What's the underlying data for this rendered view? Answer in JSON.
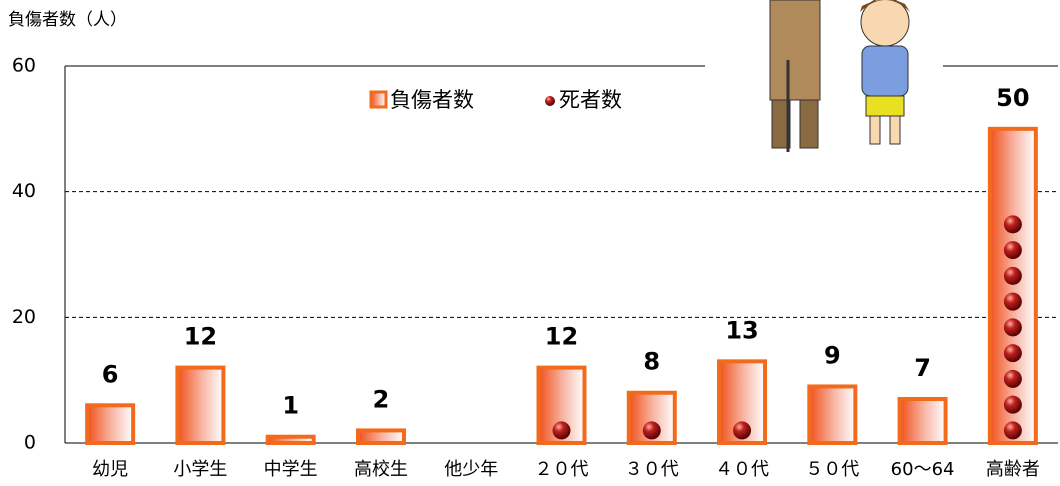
{
  "chart_data": {
    "type": "bar",
    "ylabel": "負傷者数（人）",
    "categories": [
      "幼児",
      "小学生",
      "中学生",
      "高校生",
      "他少年",
      "２０代",
      "３０代",
      "４０代",
      "５０代",
      "60～64",
      "高齢者"
    ],
    "series": [
      {
        "name": "負傷者数",
        "color": "#f26a1b",
        "values": [
          6,
          12,
          1,
          2,
          null,
          12,
          8,
          13,
          9,
          7,
          50
        ]
      },
      {
        "name": "死者数",
        "color": "#a81010",
        "values": [
          0,
          0,
          0,
          0,
          0,
          1,
          1,
          1,
          0,
          0,
          9
        ]
      }
    ],
    "ylim": [
      0,
      60
    ],
    "yticks": [
      0,
      20,
      40,
      60
    ],
    "grid": true
  }
}
